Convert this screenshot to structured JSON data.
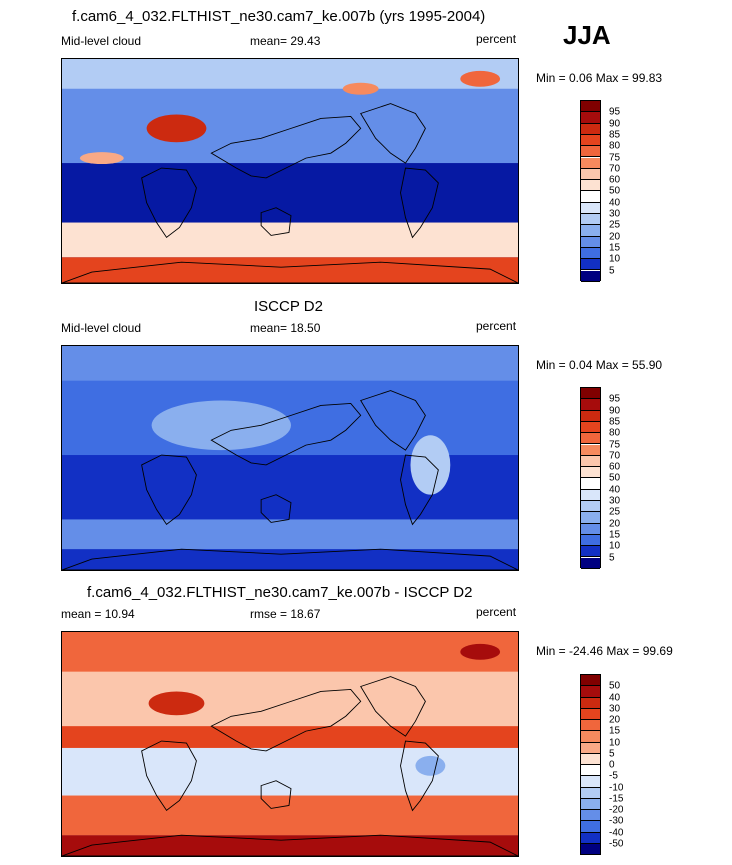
{
  "season": "JJA",
  "colors": {
    "pos": [
      "#800000",
      "#a60c0c",
      "#cc2a10",
      "#e4441e",
      "#f0663c",
      "#f68a5e",
      "#f9a986",
      "#fbc6ac",
      "#fde2d2",
      "#ffffff",
      "#d9e6fa",
      "#b2ccf4",
      "#8aafee",
      "#648ee8",
      "#3f6ee2",
      "#224fd8",
      "#1230c4",
      "#0619a3",
      "#000080"
    ],
    "diff": [
      "#800000",
      "#a60c0c",
      "#cc2a10",
      "#e4441e",
      "#f0663c",
      "#f68a5e",
      "#f9a986",
      "#fbc6ac",
      "#fde2d2",
      "#ffffff",
      "#ffffff",
      "#d9e6fa",
      "#b2ccf4",
      "#8aafee",
      "#648ee8",
      "#3f6ee2",
      "#224fd8",
      "#1230c4",
      "#0619a3",
      "#000080"
    ]
  },
  "panels": [
    {
      "title": "f.cam6_4_032.FLTHIST_ne30.cam7_ke.007b (yrs 1995-2004)",
      "left_label": "Mid-level cloud",
      "center_label": "mean=  29.43",
      "right_label": "percent",
      "minmax": "Min =   0.06 Max =  99.83",
      "colorbar_labels": [
        "95",
        "90",
        "85",
        "80",
        "75",
        "70",
        "60",
        "50",
        "40",
        "30",
        "25",
        "20",
        "15",
        "10",
        "5"
      ],
      "map_scalar": 29.43
    },
    {
      "title": "ISCCP D2",
      "left_label": "Mid-level cloud",
      "center_label": "mean=  18.50",
      "right_label": "percent",
      "minmax": "Min =   0.04 Max =  55.90",
      "colorbar_labels": [
        "95",
        "90",
        "85",
        "80",
        "75",
        "70",
        "60",
        "50",
        "40",
        "30",
        "25",
        "20",
        "15",
        "10",
        "5"
      ],
      "map_scalar": 18.5
    },
    {
      "title": "f.cam6_4_032.FLTHIST_ne30.cam7_ke.007b - ISCCP D2",
      "left_label": "mean =  10.94",
      "center_label": "rmse =  18.67",
      "right_label": "percent",
      "minmax": "Min = -24.46 Max =  99.69",
      "colorbar_labels": [
        "50",
        "40",
        "30",
        "20",
        "15",
        "10",
        "5",
        "0",
        "-5",
        "-10",
        "-15",
        "-20",
        "-30",
        "-40",
        "-50"
      ],
      "map_scalar": 10.94
    }
  ]
}
